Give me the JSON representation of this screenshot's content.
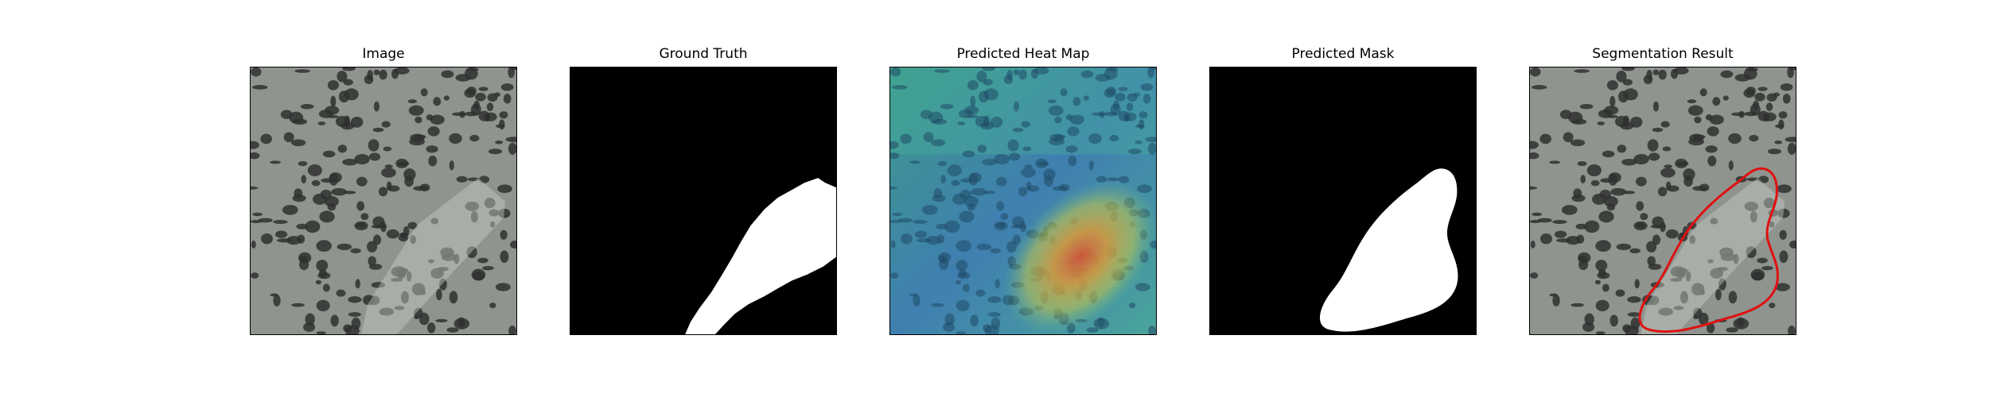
{
  "panels": [
    {
      "id": "image",
      "title": "Image"
    },
    {
      "id": "ground-truth",
      "title": "Ground Truth"
    },
    {
      "id": "heatmap",
      "title": "Predicted Heat Map"
    },
    {
      "id": "pred-mask",
      "title": "Predicted Mask"
    },
    {
      "id": "segmentation",
      "title": "Segmentation Result"
    }
  ],
  "colors": {
    "texture_bg": "#8f948f",
    "spot": "#2f312f",
    "mask": "#ffffff",
    "mask_bg": "#000000",
    "contour": "#e01010"
  }
}
